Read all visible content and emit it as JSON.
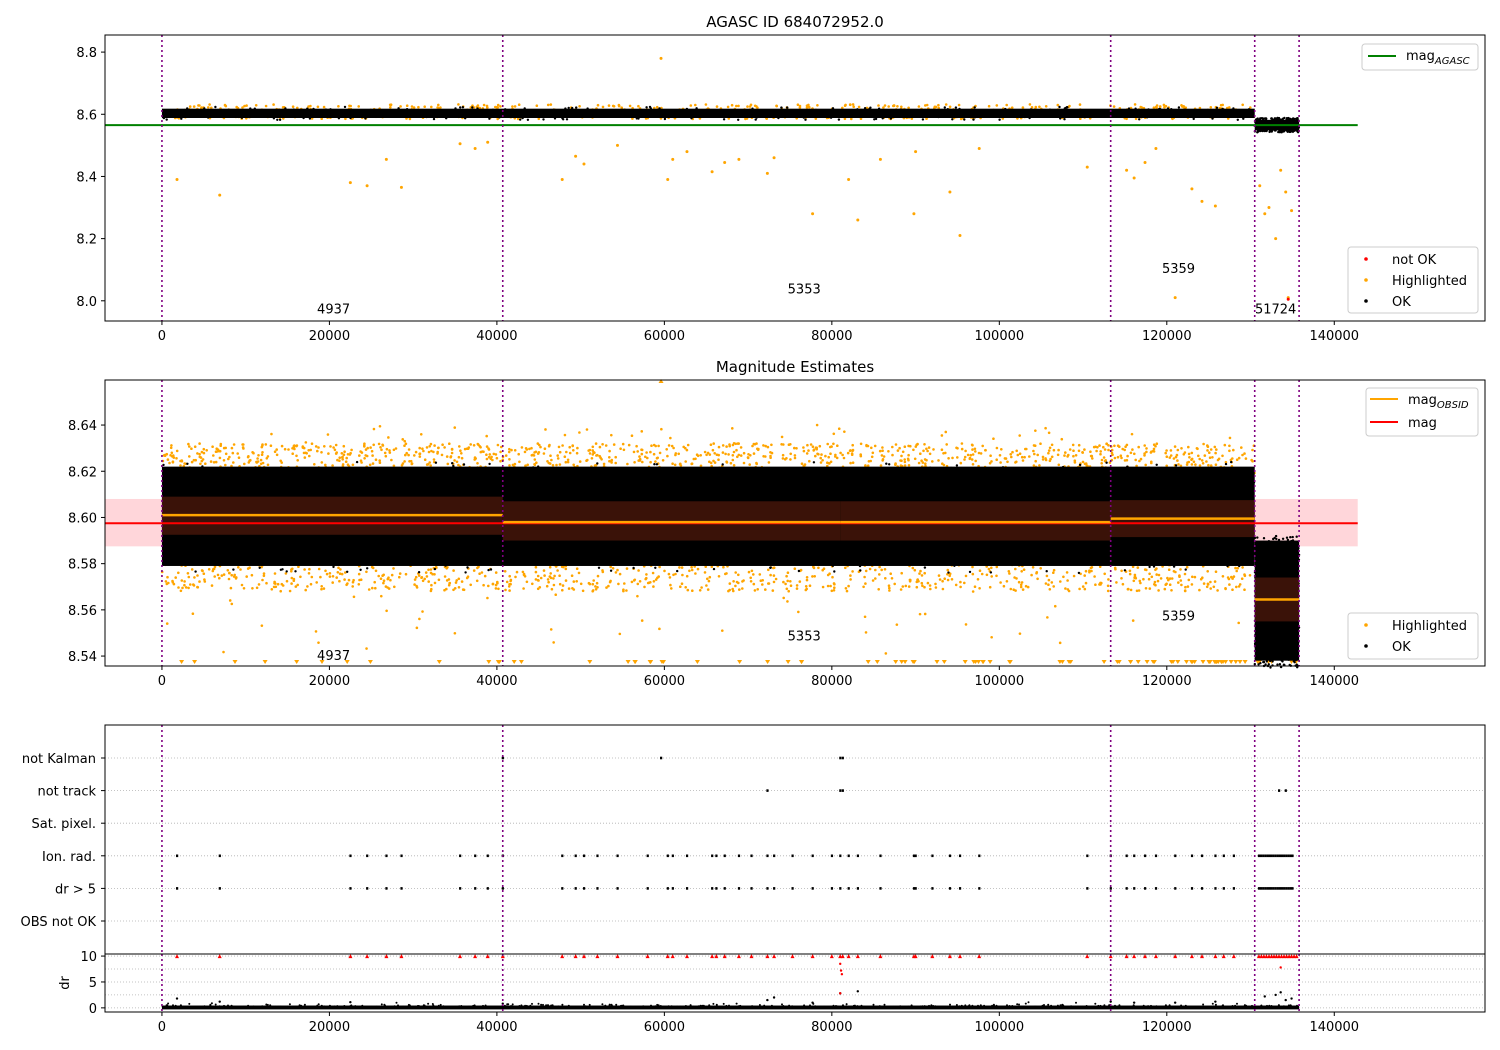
{
  "chart_data": [
    {
      "type": "scatter",
      "title": "AGASC ID 684072952.0",
      "xlabel": "",
      "ylabel": "",
      "xlim": [
        -6800,
        158000
      ],
      "ylim": [
        7.935,
        8.855
      ],
      "xticks": [
        "0",
        "20000",
        "40000",
        "60000",
        "80000",
        "100000",
        "120000",
        "140000"
      ],
      "yticks": [
        "8.0",
        "8.2",
        "8.4",
        "8.6",
        "8.8"
      ],
      "obs_boundaries": [
        0,
        40700,
        113300,
        130500,
        135800
      ],
      "obs_labels": [
        {
          "text": "4937",
          "x": 20500,
          "y": 7.975
        },
        {
          "text": "5353",
          "x": 76700,
          "y": 8.04
        },
        {
          "text": "5359",
          "x": 121400,
          "y": 8.105
        },
        {
          "text": "51724",
          "x": 133000,
          "y": 7.975
        }
      ],
      "reference_lines": [
        {
          "name": "mag_AGASC",
          "y": 8.565,
          "x_range": [
            -6800,
            142800
          ],
          "color": "#008000"
        }
      ],
      "ok_bands": [
        {
          "x_range": [
            0,
            130500
          ],
          "y_range": [
            8.588,
            8.618
          ]
        },
        {
          "x_range": [
            130500,
            135800
          ],
          "y_range": [
            8.548,
            8.582
          ]
        }
      ],
      "outliers": [
        [
          1800,
          8.39
        ],
        [
          6900,
          8.34
        ],
        [
          22500,
          8.38
        ],
        [
          24500,
          8.37
        ],
        [
          26800,
          8.455
        ],
        [
          28600,
          8.365
        ],
        [
          35600,
          8.505
        ],
        [
          37400,
          8.49
        ],
        [
          38900,
          8.51
        ],
        [
          47800,
          8.39
        ],
        [
          49400,
          8.465
        ],
        [
          50400,
          8.44
        ],
        [
          54400,
          8.5
        ],
        [
          59600,
          8.78
        ],
        [
          60400,
          8.39
        ],
        [
          61000,
          8.455
        ],
        [
          62700,
          8.48
        ],
        [
          65700,
          8.415
        ],
        [
          67200,
          8.445
        ],
        [
          68900,
          8.455
        ],
        [
          72300,
          8.41
        ],
        [
          73100,
          8.46
        ],
        [
          77700,
          8.28
        ],
        [
          82000,
          8.39
        ],
        [
          83100,
          8.26
        ],
        [
          85800,
          8.455
        ],
        [
          89800,
          8.28
        ],
        [
          90000,
          8.48
        ],
        [
          94100,
          8.35
        ],
        [
          95300,
          8.21
        ],
        [
          97600,
          8.49
        ],
        [
          110500,
          8.43
        ],
        [
          115200,
          8.42
        ],
        [
          116100,
          8.395
        ],
        [
          117400,
          8.445
        ],
        [
          118700,
          8.49
        ],
        [
          121000,
          8.01
        ],
        [
          123000,
          8.36
        ],
        [
          124200,
          8.32
        ],
        [
          125800,
          8.305
        ],
        [
          131100,
          8.37
        ],
        [
          131700,
          8.28
        ],
        [
          132200,
          8.3
        ],
        [
          133000,
          8.2
        ],
        [
          133600,
          8.42
        ],
        [
          134200,
          8.35
        ],
        [
          134500,
          8.01
        ],
        [
          134900,
          8.29
        ]
      ],
      "legends": [
        {
          "position": "top-right",
          "entries": [
            {
              "label": "mag",
              "subscript": "AGASC",
              "color": "#008000"
            }
          ]
        },
        {
          "position": "bottom-right",
          "entries": [
            {
              "label": "not OK",
              "color": "#ff0000"
            },
            {
              "label": "Highlighted",
              "color": "#ffa500"
            },
            {
              "label": "OK",
              "color": "#000000"
            }
          ]
        }
      ]
    },
    {
      "type": "scatter",
      "title": "Magnitude Estimates",
      "xlabel": "",
      "ylabel": "",
      "xlim": [
        -6800,
        158000
      ],
      "ylim": [
        8.5357,
        8.6595
      ],
      "xticks": [
        "0",
        "20000",
        "40000",
        "60000",
        "80000",
        "100000",
        "120000",
        "140000"
      ],
      "yticks": [
        "8.54",
        "8.56",
        "8.58",
        "8.60",
        "8.62",
        "8.64"
      ],
      "obs_boundaries": [
        0,
        40700,
        113300,
        130500,
        135800
      ],
      "obs_labels": [
        {
          "text": "4937",
          "x": 20500,
          "y": 8.5405
        },
        {
          "text": "5353",
          "x": 76700,
          "y": 8.549
        },
        {
          "text": "5359",
          "x": 121400,
          "y": 8.5575
        },
        {
          "text": "51724",
          "x": 133000,
          "y": 8.5405
        }
      ],
      "reference_lines": [
        {
          "name": "mag",
          "y": 8.5975,
          "x_range": [
            -6800,
            142800
          ],
          "color": "#ff0000",
          "band": [
            8.5875,
            8.608
          ]
        }
      ],
      "obs_means": [
        {
          "x_range": [
            0,
            40700
          ],
          "y": 8.601,
          "std": [
            8.5925,
            8.609
          ]
        },
        {
          "x_range": [
            40700,
            81000
          ],
          "y": 8.598,
          "std": [
            8.59,
            8.607
          ]
        },
        {
          "x_range": [
            81000,
            113300
          ],
          "y": 8.598,
          "std": [
            8.59,
            8.607
          ]
        },
        {
          "x_range": [
            113300,
            130500
          ],
          "y": 8.5995,
          "std": [
            8.5915,
            8.6075
          ]
        },
        {
          "x_range": [
            130500,
            135800
          ],
          "y": 8.5645,
          "std": [
            8.555,
            8.574
          ]
        }
      ],
      "ok_bands": [
        {
          "x_range": [
            0,
            130500
          ],
          "y_range": [
            8.579,
            8.622
          ]
        },
        {
          "x_range": [
            130500,
            135800
          ],
          "y_range": [
            8.538,
            8.59
          ]
        }
      ],
      "highlight_bands": [
        {
          "x_range": [
            0,
            130500
          ],
          "y_range": [
            8.62,
            8.632
          ],
          "outliers_high": [
            8.636,
            8.64,
            8.645
          ]
        },
        {
          "x_range": [
            0,
            130500
          ],
          "y_range": [
            8.57,
            8.58
          ],
          "outliers_low": [
            8.56,
            8.55,
            8.545
          ]
        }
      ],
      "legends": [
        {
          "position": "top-right",
          "entries": [
            {
              "label": "mag",
              "subscript": "OBSID",
              "color": "#ffa500"
            },
            {
              "label": "mag",
              "color": "#ff0000"
            }
          ]
        },
        {
          "position": "bottom-right",
          "entries": [
            {
              "label": "Highlighted",
              "color": "#ffa500"
            },
            {
              "label": "OK",
              "color": "#000000"
            }
          ]
        }
      ]
    },
    {
      "type": "scatter",
      "title": "",
      "xlabel": "",
      "ylabel": "",
      "xlim": [
        -6800,
        158000
      ],
      "categories": [
        "not Kalman",
        "not track",
        "Sat. pixel.",
        "Ion. rad.",
        "dr > 5",
        "OBS not OK"
      ],
      "obs_boundaries": [
        0,
        40700,
        113300,
        130500,
        135800
      ],
      "flags": {
        "not Kalman": [
          40700,
          59600,
          81000,
          81300
        ],
        "not track": [
          72300,
          81000,
          81300,
          133400,
          134200
        ],
        "Sat. pixel.": [],
        "Ion. rad.": [
          1800,
          6900,
          22500,
          24500,
          26800,
          28600,
          35600,
          37400,
          38900,
          40700,
          47800,
          49400,
          50400,
          52000,
          54400,
          58000,
          60400,
          61000,
          62700,
          65700,
          66200,
          67200,
          68900,
          70400,
          72300,
          73100,
          75300,
          77700,
          80000,
          81000,
          82000,
          83100,
          85800,
          89800,
          90000,
          92000,
          94100,
          95300,
          97600,
          110500,
          113300,
          115200,
          116100,
          117400,
          118700,
          121000,
          123000,
          124200,
          125800,
          126800,
          128000
        ],
        "dr > 5": [
          1800,
          6900,
          22500,
          24500,
          26800,
          28600,
          35600,
          37400,
          38900,
          40700,
          47800,
          49400,
          50400,
          52000,
          54400,
          58000,
          60400,
          61000,
          62700,
          65700,
          66200,
          67200,
          68900,
          70400,
          72300,
          73100,
          75300,
          77700,
          80000,
          81000,
          82000,
          83100,
          85800,
          89800,
          90000,
          92000,
          94100,
          95300,
          97600,
          110500,
          113300,
          115200,
          116100,
          117400,
          118700,
          121000,
          123000,
          124200,
          125800,
          126800,
          128000
        ],
        "OBS not OK": []
      },
      "flag_dense_ranges": {
        "Ion. rad.": [
          131000,
          135200
        ],
        "dr > 5": [
          131000,
          135200
        ]
      }
    },
    {
      "type": "scatter",
      "title": "",
      "xlabel": "",
      "ylabel": "dr",
      "xlim": [
        -6800,
        158000
      ],
      "ylim": [
        -0.8,
        10.4
      ],
      "yticks": [
        "0",
        "5",
        "10"
      ],
      "obs_boundaries": [
        0,
        40700,
        113300,
        130500,
        135800
      ],
      "clipped_value": 10,
      "baseline_range": [
        0,
        135800
      ],
      "red_clipped_x": [
        1800,
        6900,
        22500,
        24500,
        26800,
        28600,
        35600,
        37400,
        38900,
        40700,
        47800,
        49400,
        50400,
        52000,
        54400,
        58000,
        60400,
        61000,
        62700,
        65700,
        66200,
        67200,
        68900,
        70400,
        72300,
        73100,
        75300,
        77700,
        80000,
        81000,
        81300,
        82000,
        83100,
        85800,
        89800,
        90000,
        92000,
        94100,
        95300,
        97600,
        110500,
        113300,
        115200,
        116100,
        117400,
        118700,
        121000,
        123000,
        124200,
        125800,
        126800,
        128000
      ],
      "red_points": [
        [
          81000,
          8.5
        ],
        [
          81100,
          7.2
        ],
        [
          81200,
          6.5
        ],
        [
          81000,
          2.8
        ],
        [
          133600,
          7.8
        ]
      ],
      "black_points": [
        [
          1800,
          1.8
        ],
        [
          6900,
          1.2
        ],
        [
          22500,
          1.1
        ],
        [
          40700,
          0.8
        ],
        [
          72300,
          1.5
        ],
        [
          73100,
          2.0
        ],
        [
          77700,
          1.0
        ],
        [
          81000,
          2.8
        ],
        [
          83100,
          3.2
        ],
        [
          113300,
          1.2
        ],
        [
          116100,
          1.0
        ],
        [
          121000,
          1.0
        ],
        [
          125800,
          1.2
        ],
        [
          131700,
          2.2
        ],
        [
          133000,
          2.5
        ],
        [
          133600,
          3.0
        ],
        [
          134200,
          1.5
        ],
        [
          134900,
          1.8
        ]
      ]
    }
  ]
}
